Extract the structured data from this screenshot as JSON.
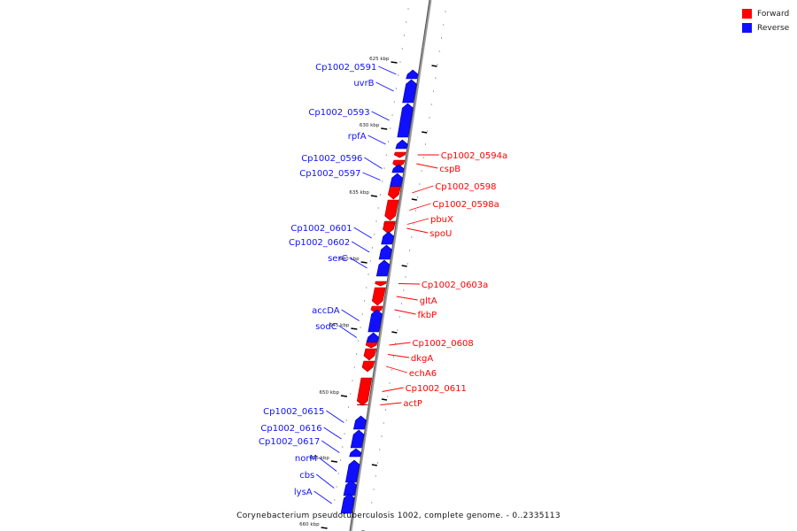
{
  "legend": {
    "forward_label": "Forward",
    "reverse_label": "Reverse",
    "forward_color": "#ff0000",
    "reverse_color": "#1010ff"
  },
  "caption": "Corynebacterium pseudotuberculosis 1002, complete genome. - 0..2335113",
  "ticks": [
    "625 kbp",
    "630 kbp",
    "635 kbp",
    "640 kbp",
    "645 kbp",
    "650 kbp",
    "655 kbp",
    "660 kbp"
  ],
  "genes": [
    {
      "label": "Cp1002_0591",
      "strand": "reverse"
    },
    {
      "label": "uvrB",
      "strand": "reverse"
    },
    {
      "label": "Cp1002_0593",
      "strand": "reverse"
    },
    {
      "label": "rpfA",
      "strand": "reverse"
    },
    {
      "label": "Cp1002_0594a",
      "strand": "forward"
    },
    {
      "label": "cspB",
      "strand": "forward"
    },
    {
      "label": "Cp1002_0596",
      "strand": "reverse"
    },
    {
      "label": "Cp1002_0597",
      "strand": "reverse"
    },
    {
      "label": "Cp1002_0598",
      "strand": "forward"
    },
    {
      "label": "Cp1002_0598a",
      "strand": "forward"
    },
    {
      "label": "pbuX",
      "strand": "forward"
    },
    {
      "label": "spoU",
      "strand": "forward"
    },
    {
      "label": "Cp1002_0601",
      "strand": "reverse"
    },
    {
      "label": "Cp1002_0602",
      "strand": "reverse"
    },
    {
      "label": "serC",
      "strand": "reverse"
    },
    {
      "label": "Cp1002_0603a",
      "strand": "forward"
    },
    {
      "label": "gltA",
      "strand": "forward"
    },
    {
      "label": "fkbP",
      "strand": "forward"
    },
    {
      "label": "accDA",
      "strand": "reverse"
    },
    {
      "label": "sodC",
      "strand": "reverse"
    },
    {
      "label": "Cp1002_0608",
      "strand": "forward"
    },
    {
      "label": "dkgA",
      "strand": "forward"
    },
    {
      "label": "echA6",
      "strand": "forward"
    },
    {
      "label": "Cp1002_0611",
      "strand": "forward"
    },
    {
      "label": "actP",
      "strand": "forward"
    },
    {
      "label": "Cp1002_0615",
      "strand": "reverse"
    },
    {
      "label": "Cp1002_0616",
      "strand": "reverse"
    },
    {
      "label": "Cp1002_0617",
      "strand": "reverse"
    },
    {
      "label": "norM",
      "strand": "reverse"
    },
    {
      "label": "cbs",
      "strand": "reverse"
    },
    {
      "label": "lysA",
      "strand": "reverse"
    }
  ]
}
